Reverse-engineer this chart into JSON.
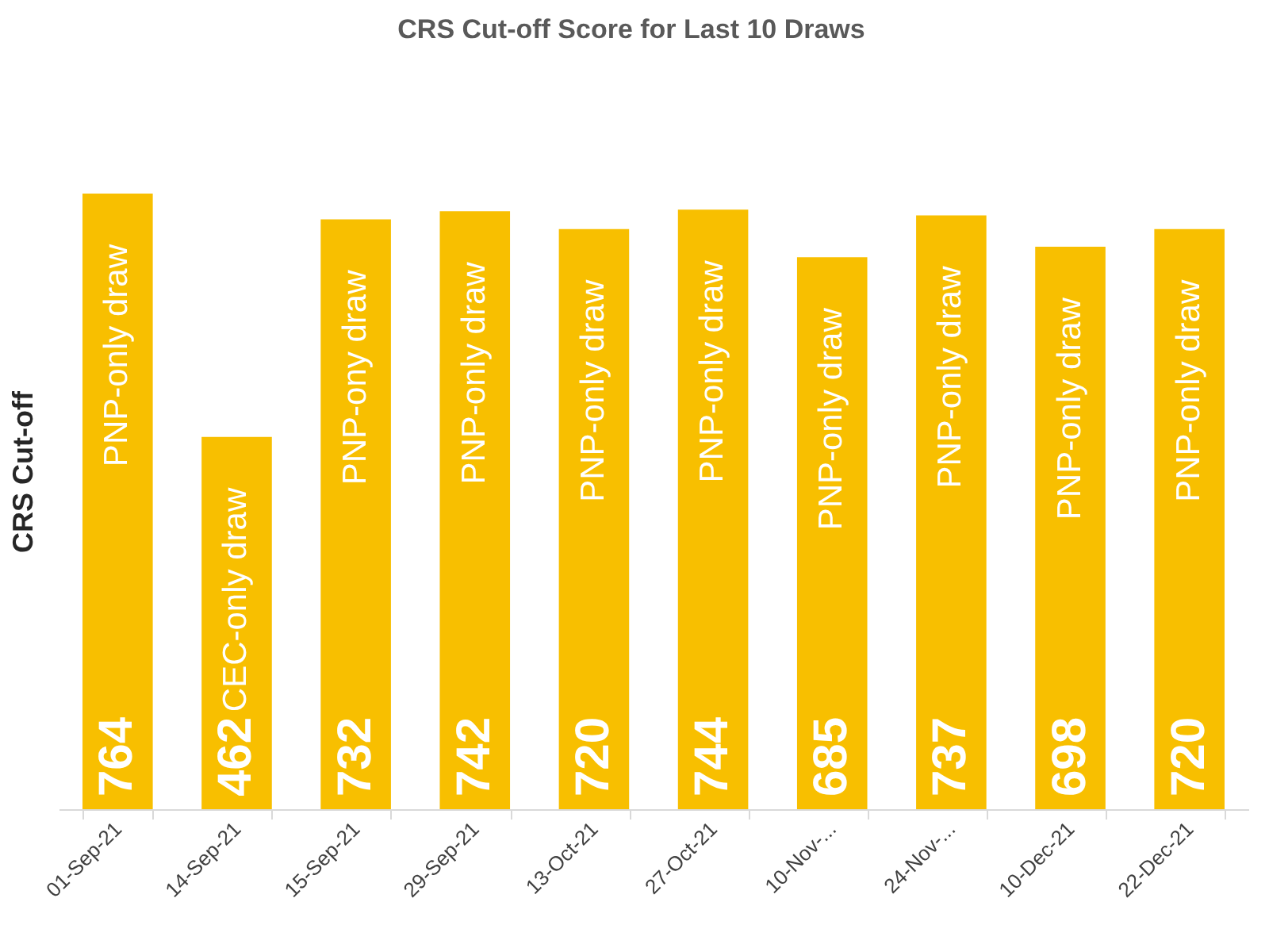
{
  "chart_data": {
    "type": "bar",
    "title": "CRS Cut-off Score for Last 10 Draws",
    "ylabel": "CRS Cut-off",
    "categories": [
      "01-Sep-21",
      "14-Sep-21",
      "15-Sep-21",
      "29-Sep-21",
      "13-Oct-21",
      "27-Oct-21",
      "10-Nov-...",
      "24-Nov-...",
      "10-Dec-21",
      "22-Dec-21"
    ],
    "values": [
      764,
      462,
      732,
      742,
      720,
      744,
      685,
      737,
      698,
      720
    ],
    "color": "#f8bf00",
    "data_labels": true,
    "tick_labels": "x",
    "annotations": [
      {
        "text": "PNP-only draw",
        "x": "01-Sep-21"
      },
      {
        "text": "CEC-only draw",
        "x": "14-Sep-21"
      },
      {
        "text": "PNP-ony draw",
        "x": "15-Sep-21"
      },
      {
        "text": "PNP-only draw",
        "x": "29-Sep-21"
      },
      {
        "text": "PNP-only draw",
        "x": "13-Oct-21"
      },
      {
        "text": "PNP-only draw",
        "x": "27-Oct-21"
      },
      {
        "text": "PNP-only draw",
        "x": "10-Nov-..."
      },
      {
        "text": "PNP-only draw",
        "x": "24-Nov-..."
      },
      {
        "text": "PNP-only draw",
        "x": "10-Dec-21"
      },
      {
        "text": "PNP-only draw",
        "x": "22-Dec-21"
      }
    ]
  }
}
